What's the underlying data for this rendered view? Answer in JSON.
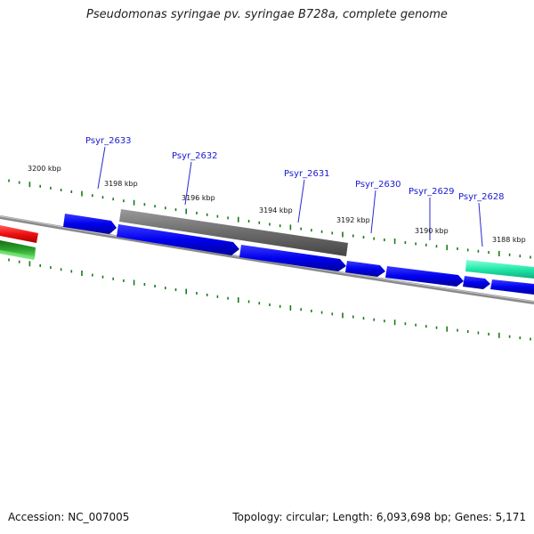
{
  "title": "Pseudomonas syringae pv. syringae B728a, complete genome",
  "footer": {
    "accession": "Accession: NC_007005",
    "summary": "Topology: circular; Length: 6,093,698 bp; Genes: 5,171"
  },
  "colors": {
    "cds_forward": "#0000ee",
    "cds_grey": "#6b6b6b",
    "cds_red": "#ee1111",
    "cds_green": "#2aa02a",
    "cds_teal": "#22e8a8",
    "backbone": "#7a7a7a",
    "tick": "#1a7a1a",
    "gene_label": "#1a1ad0"
  },
  "scale_labels": [
    "3200 kbp",
    "3198 kbp",
    "3196 kbp",
    "3194 kbp",
    "3192 kbp",
    "3190 kbp",
    "3188 kbp"
  ],
  "gene_labels": [
    "Psyr_2633",
    "Psyr_2632",
    "Psyr_2631",
    "Psyr_2630",
    "Psyr_2629",
    "Psyr_2628"
  ]
}
